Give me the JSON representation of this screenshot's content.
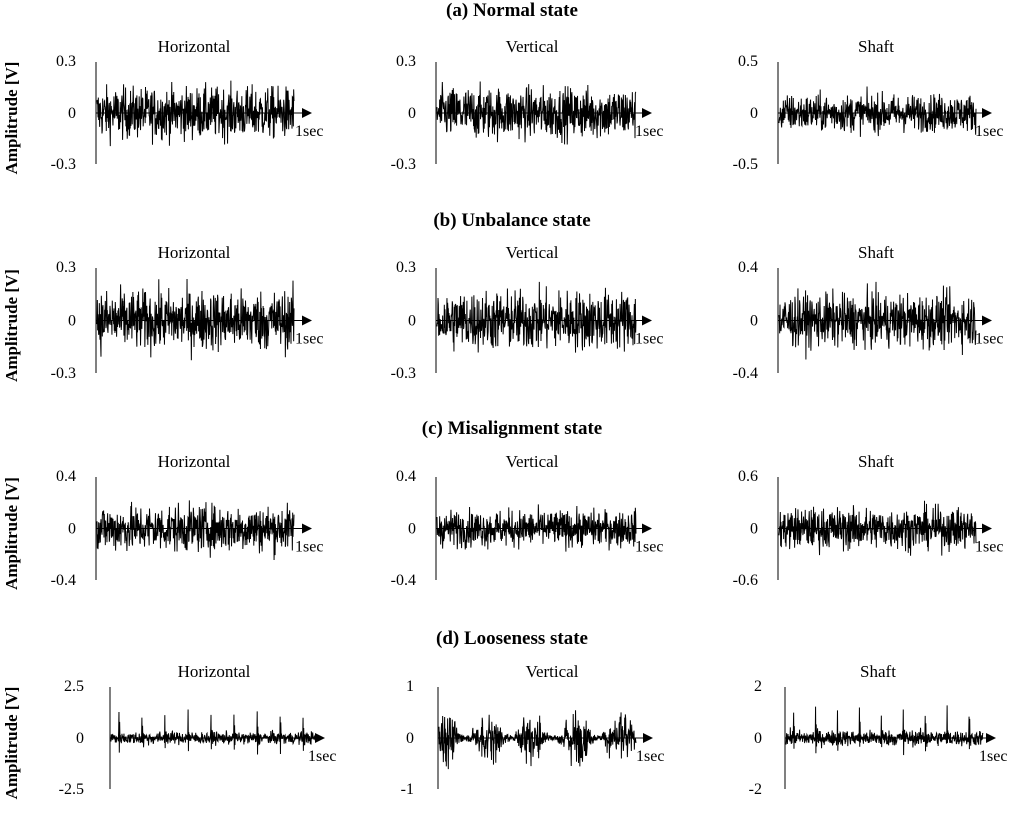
{
  "chart_data": {
    "type": "line",
    "title": "",
    "xlabel": "",
    "ylabel": "Amplitrude [V]",
    "sections": [
      {
        "title": "(a) Normal state",
        "ylabel": "Amplitrude [V]",
        "panels": [
          {
            "title": "Horizontal",
            "ylim": [
              -0.3,
              0.3
            ],
            "ytick_labels": [
              "0.3",
              "0",
              "-0.3"
            ],
            "x_end_label": "1sec",
            "pattern": "noise",
            "rms": 0.075,
            "peak": 0.25
          },
          {
            "title": "Vertical",
            "ylim": [
              -0.3,
              0.3
            ],
            "ytick_labels": [
              "0.3",
              "0",
              "-0.3"
            ],
            "x_end_label": "1sec",
            "pattern": "noise",
            "rms": 0.075,
            "peak": 0.25
          },
          {
            "title": "Shaft",
            "ylim": [
              -0.5,
              0.5
            ],
            "ytick_labels": [
              "0.5",
              "0",
              "-0.5"
            ],
            "x_end_label": "1sec",
            "pattern": "noise",
            "rms": 0.09,
            "peak": 0.38
          }
        ]
      },
      {
        "title": "(b) Unbalance state",
        "ylabel": "Amplitrude [V]",
        "panels": [
          {
            "title": "Horizontal",
            "ylim": [
              -0.3,
              0.3
            ],
            "ytick_labels": [
              "0.3",
              "0",
              "-0.3"
            ],
            "x_end_label": "1sec",
            "pattern": "noise",
            "rms": 0.085,
            "peak": 0.25
          },
          {
            "title": "Vertical",
            "ylim": [
              -0.3,
              0.3
            ],
            "ytick_labels": [
              "0.3",
              "0",
              "-0.3"
            ],
            "x_end_label": "1sec",
            "pattern": "noise",
            "rms": 0.085,
            "peak": 0.27
          },
          {
            "title": "Shaft",
            "ylim": [
              -0.4,
              0.4
            ],
            "ytick_labels": [
              "0.4",
              "0",
              "-0.4"
            ],
            "x_end_label": "1sec",
            "pattern": "noise",
            "rms": 0.1,
            "peak": 0.3
          }
        ]
      },
      {
        "title": "(c) Misalignment state",
        "ylabel": "Amplitrude [V]",
        "panels": [
          {
            "title": "Horizontal",
            "ylim": [
              -0.4,
              0.4
            ],
            "ytick_labels": [
              "0.4",
              "0",
              "-0.4"
            ],
            "x_end_label": "1sec",
            "pattern": "noise",
            "rms": 0.09,
            "peak": 0.32
          },
          {
            "title": "Vertical",
            "ylim": [
              -0.4,
              0.4
            ],
            "ytick_labels": [
              "0.4",
              "0",
              "-0.4"
            ],
            "x_end_label": "1sec",
            "pattern": "noise",
            "rms": 0.07,
            "peak": 0.26
          },
          {
            "title": "Shaft",
            "ylim": [
              -0.6,
              0.6
            ],
            "ytick_labels": [
              "0.6",
              "0",
              "-0.6"
            ],
            "x_end_label": "1sec",
            "pattern": "noise",
            "rms": 0.12,
            "peak": 0.45
          }
        ]
      },
      {
        "title": "(d) Looseness state",
        "ylabel": "Amplitrude [V]",
        "panels": [
          {
            "title": "Horizontal",
            "ylim": [
              -2.5,
              2.5
            ],
            "ytick_labels": [
              "2.5",
              "0",
              "-2.5"
            ],
            "x_end_label": "1sec",
            "pattern": "impulses",
            "rms": 0.15,
            "peak": 1.6,
            "impulse_count": 9
          },
          {
            "title": "Vertical",
            "ylim": [
              -1,
              1
            ],
            "ytick_labels": [
              "1",
              "0",
              "-1"
            ],
            "x_end_label": "1sec",
            "pattern": "modulated",
            "rms": 0.2,
            "peak": 0.75,
            "impulse_count": 9
          },
          {
            "title": "Shaft",
            "ylim": [
              -2,
              2
            ],
            "ytick_labels": [
              "2",
              "0",
              "-2"
            ],
            "x_end_label": "1sec",
            "pattern": "impulses",
            "rms": 0.15,
            "peak": 1.4,
            "impulse_count": 9
          }
        ]
      }
    ]
  }
}
